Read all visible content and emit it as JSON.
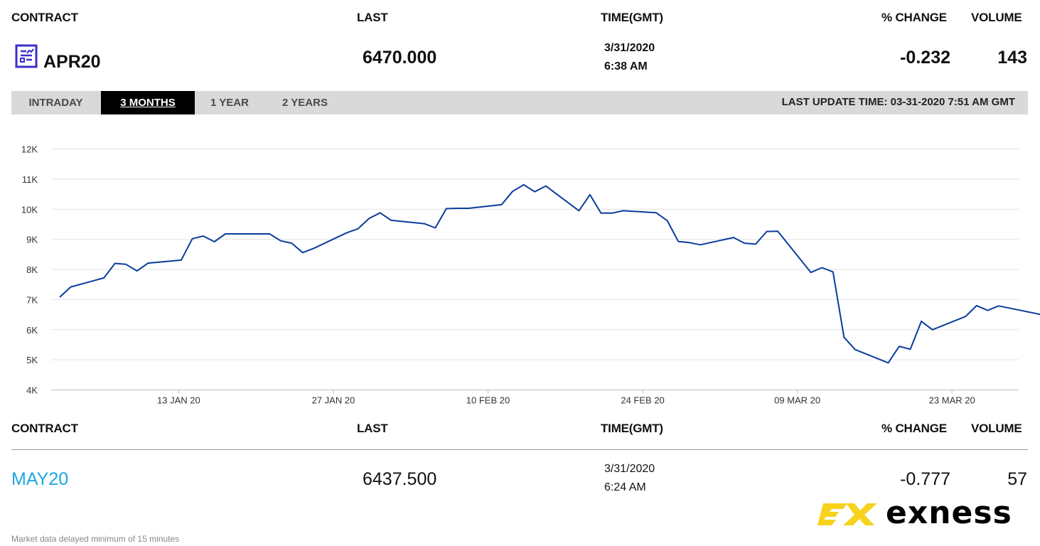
{
  "header": {
    "contract": "CONTRACT",
    "last": "LAST",
    "time": "TIME(GMT)",
    "pct_change": "% CHANGE",
    "volume": "VOLUME"
  },
  "main_row": {
    "contract": "APR20",
    "last": "6470.000",
    "date": "3/31/2020",
    "time": "6:38 AM",
    "pct_change": "-0.232",
    "volume": "143",
    "icon": "report-chart-icon"
  },
  "tabs": [
    {
      "label": "INTRADAY",
      "active": false
    },
    {
      "label": "3 MONTHS",
      "active": true
    },
    {
      "label": "1 YEAR",
      "active": false
    },
    {
      "label": "2 YEARS",
      "active": false
    }
  ],
  "last_update": "LAST UPDATE TIME: 03-31-2020 7:51 AM GMT",
  "chart_data": {
    "type": "line",
    "y_ticks": [
      "12K",
      "11K",
      "10K",
      "9K",
      "8K",
      "7K",
      "6K",
      "5K",
      "4K"
    ],
    "x_ticks": [
      "13 JAN 20",
      "27 JAN 20",
      "10 FEB 20",
      "24 FEB 20",
      "09 MAR 20",
      "23 MAR 20"
    ],
    "ylim": [
      4000,
      12000
    ],
    "grid": true,
    "line_color": "#0a3d9c",
    "x_day_range": [
      0,
      91
    ],
    "series": [
      {
        "values": [
          [
            2,
            7080
          ],
          [
            3,
            7420
          ],
          [
            6,
            7720
          ],
          [
            7,
            8200
          ],
          [
            8,
            8170
          ],
          [
            9,
            7950
          ],
          [
            10,
            8210
          ],
          [
            13,
            8310
          ],
          [
            14,
            9020
          ],
          [
            15,
            9110
          ],
          [
            16,
            8920
          ],
          [
            17,
            9180
          ],
          [
            21,
            9180
          ],
          [
            22,
            8950
          ],
          [
            23,
            8870
          ],
          [
            24,
            8560
          ],
          [
            25,
            8700
          ],
          [
            28,
            9220
          ],
          [
            29,
            9350
          ],
          [
            30,
            9690
          ],
          [
            31,
            9880
          ],
          [
            32,
            9630
          ],
          [
            35,
            9520
          ],
          [
            36,
            9380
          ],
          [
            37,
            10020
          ],
          [
            38,
            10030
          ],
          [
            39,
            10030
          ],
          [
            42,
            10150
          ],
          [
            43,
            10590
          ],
          [
            44,
            10810
          ],
          [
            45,
            10580
          ],
          [
            46,
            10770
          ],
          [
            49,
            9950
          ],
          [
            50,
            10480
          ],
          [
            51,
            9870
          ],
          [
            52,
            9870
          ],
          [
            53,
            9950
          ],
          [
            56,
            9880
          ],
          [
            57,
            9620
          ],
          [
            58,
            8930
          ],
          [
            59,
            8890
          ],
          [
            60,
            8820
          ],
          [
            63,
            9060
          ],
          [
            64,
            8870
          ],
          [
            65,
            8840
          ],
          [
            66,
            9260
          ],
          [
            67,
            9270
          ],
          [
            70,
            7900
          ],
          [
            71,
            8060
          ],
          [
            72,
            7920
          ],
          [
            73,
            5750
          ],
          [
            74,
            5340
          ],
          [
            77,
            4900
          ],
          [
            78,
            5450
          ],
          [
            79,
            5350
          ],
          [
            80,
            6280
          ],
          [
            81,
            6000
          ],
          [
            84,
            6440
          ],
          [
            85,
            6800
          ],
          [
            86,
            6640
          ],
          [
            87,
            6790
          ],
          [
            91,
            6490
          ]
        ]
      }
    ]
  },
  "second_header": {
    "contract": "CONTRACT",
    "last": "LAST",
    "time": "TIME(GMT)",
    "pct_change": "% CHANGE",
    "volume": "VOLUME"
  },
  "second_row": {
    "contract": "MAY20",
    "last": "6437.500",
    "date": "3/31/2020",
    "time": "6:24 AM",
    "pct_change": "-0.777",
    "volume": "57",
    "link_color": "#1da6e0"
  },
  "brand": {
    "name": "exness",
    "color": "#f6d21c"
  },
  "footer": "Market data delayed minimum of 15 minutes"
}
